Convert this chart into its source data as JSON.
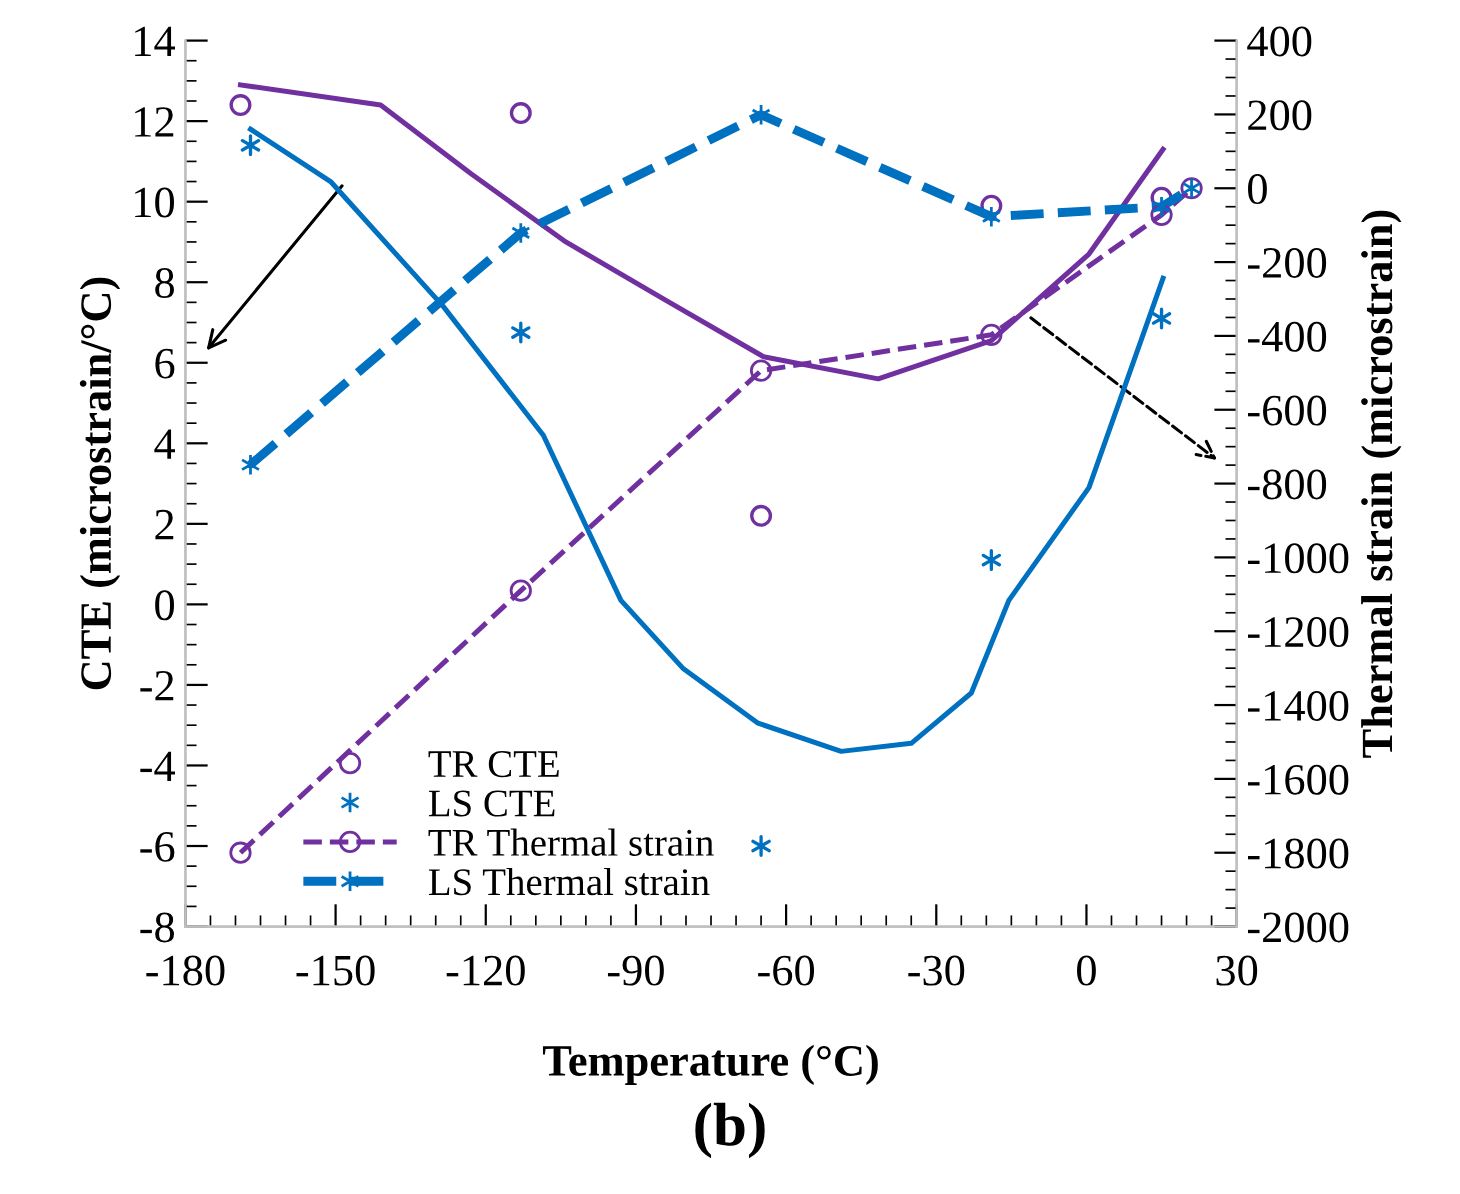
{
  "chart_data": {
    "type": "line",
    "xlabel": "Temperature (°C)",
    "ylabel": "CTE (microstrain/°C)",
    "y2label": "Thermal strain (microstrain)",
    "annotations": [
      "(b)"
    ],
    "xlim": [
      -180,
      30
    ],
    "xticks": [
      -180,
      -150,
      -120,
      -90,
      -60,
      -30,
      0,
      30
    ],
    "ylim": [
      -8,
      14
    ],
    "yticks": [
      -8,
      -6,
      -4,
      -2,
      0,
      2,
      4,
      6,
      8,
      10,
      12,
      14
    ],
    "y2lim": [
      -2000,
      400
    ],
    "y2ticks": [
      -2000,
      -1800,
      -1600,
      -1400,
      -1200,
      -1000,
      -800,
      -600,
      -400,
      -200,
      0,
      200,
      400
    ],
    "legend": "bottom left",
    "grid": false,
    "series": [
      {
        "name": "TR CTE",
        "type": "scatter",
        "marker": "circle",
        "color": "#7030a0",
        "x": [
          -169,
          -113,
          -65,
          -19,
          15
        ],
        "values": [
          12.4,
          12.2,
          2.2,
          9.9,
          10.1
        ]
      },
      {
        "name": "LS CTE",
        "type": "scatter",
        "marker": "cross",
        "color": "#0070c0",
        "x": [
          -167,
          -113,
          -65,
          -19,
          15
        ],
        "values": [
          11.4,
          6.75,
          -6.0,
          1.1,
          7.1
        ]
      },
      {
        "name": "TR Thermal strain",
        "axis": "y2",
        "line_style": "dashed",
        "marker": "circle",
        "color": "#7030a0",
        "x": [
          -169,
          -113,
          -65,
          -19,
          15,
          21
        ],
        "values": [
          -1800,
          -1090,
          -494,
          -397,
          -72,
          0
        ]
      },
      {
        "name": "LS Thermal strain",
        "axis": "y2",
        "line_style": "dashed",
        "marker": "cross",
        "color": "#0070c0",
        "x": [
          -167,
          -113,
          -65,
          -19,
          15,
          21
        ],
        "values": [
          -749,
          -121,
          199,
          -77,
          -50,
          0
        ]
      },
      {
        "line_style": "solid",
        "color": "#7030a0",
        "x": [
          -169,
          -141,
          -123,
          -104,
          -84,
          -64.5,
          -41.6,
          -19,
          0.5,
          15.3
        ],
        "values": [
          12.9,
          12.4,
          10.7,
          9.0,
          7.55,
          6.15,
          5.6,
          6.55,
          8.7,
          11.3
        ]
      },
      {
        "line_style": "solid",
        "color": "#0070c0",
        "x": [
          -167,
          -151,
          -128.5,
          -108.5,
          -93,
          -80.5,
          -65.6,
          -49,
          -35,
          -23,
          -15.5,
          0.5,
          15.3
        ],
        "values": [
          11.8,
          10.5,
          7.4,
          4.2,
          0.1,
          -1.6,
          -2.95,
          -3.65,
          -3.45,
          -2.2,
          0.1,
          2.9,
          8.1
        ]
      }
    ]
  }
}
